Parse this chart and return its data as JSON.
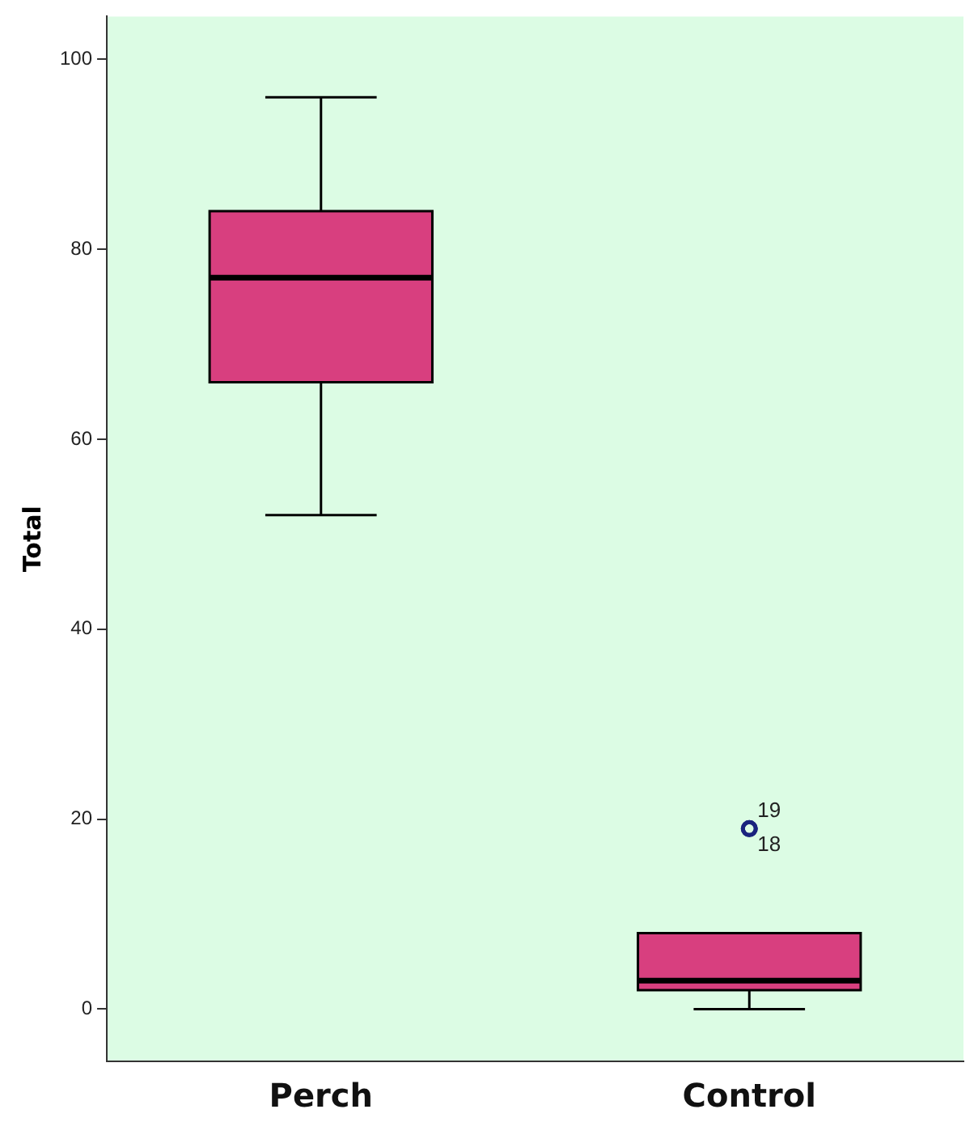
{
  "chart_data": {
    "type": "box",
    "ylabel": "Total",
    "categories": [
      "Perch",
      "Control"
    ],
    "color": "#d83f7f",
    "boxes": [
      {
        "low": 52,
        "q1": 66,
        "median": 77,
        "q3": 84,
        "high": 96
      },
      {
        "low": 0,
        "q1": 2,
        "median": 3,
        "q3": 8,
        "high": 8,
        "outliers": [
          19,
          19
        ]
      }
    ],
    "ylim": [
      -5.5,
      104.5
    ],
    "yticks": [
      0,
      20,
      40,
      60,
      80,
      100
    ],
    "grid": false,
    "legend": false,
    "annotations": [
      "19",
      "18"
    ]
  }
}
